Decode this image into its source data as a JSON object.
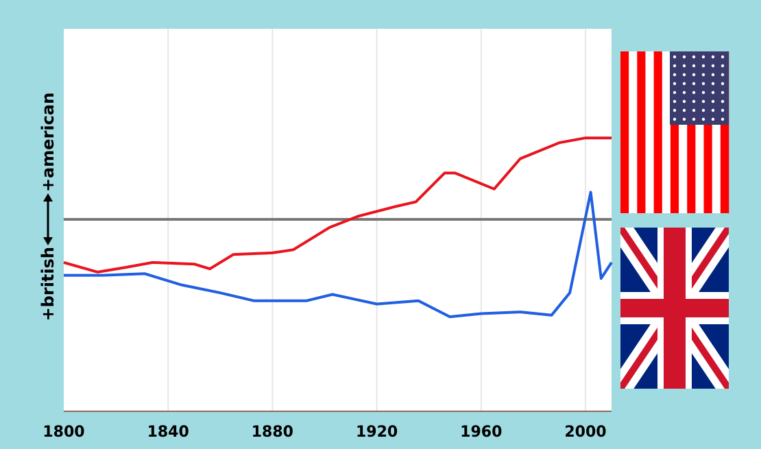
{
  "colors": {
    "background": "#a0dbe1",
    "plot_bg": "#ffffff",
    "american_line": "#e8141e",
    "british_line": "#1f5fe0",
    "zero_line": "#777777",
    "grid": "#e6e6e6"
  },
  "chart_data": {
    "type": "line",
    "title": "",
    "xlabel": "",
    "ylabel": {
      "positive": "+american",
      "negative": "+british"
    },
    "xlim": [
      1800,
      2010
    ],
    "ylim": [
      -100,
      100
    ],
    "x_ticks": [
      "1800",
      "1840",
      "1880",
      "1920",
      "1960",
      "2000"
    ],
    "x_tick_values": [
      1800,
      1840,
      1880,
      1920,
      1960,
      2000
    ],
    "grid": "vertical",
    "legend": "flag images at right: USA flag (top) marks American side, Union Jack (bottom) marks British side",
    "series": [
      {
        "color": "#e8141e",
        "x": [
          1800,
          1813,
          1824,
          1834,
          1850,
          1856,
          1865,
          1880,
          1888,
          1902,
          1913,
          1927,
          1935,
          1946,
          1950,
          1965,
          1975,
          1990,
          2000,
          2010
        ],
        "y": [
          -27,
          -33,
          -30,
          -27,
          -28,
          -31,
          -22,
          -21,
          -19,
          -5,
          2,
          8,
          11,
          29,
          29,
          19,
          38,
          48,
          51,
          51
        ]
      },
      {
        "color": "#1f5fe0",
        "x": [
          1800,
          1815,
          1831,
          1845,
          1860,
          1873,
          1885,
          1893,
          1903,
          1920,
          1936,
          1948,
          1960,
          1975,
          1987,
          1994,
          2002,
          2006,
          2010
        ],
        "y": [
          -35,
          -35,
          -34,
          -41,
          -46,
          -51,
          -51,
          -51,
          -47,
          -53,
          -51,
          -61,
          -59,
          -58,
          -60,
          -46,
          17,
          -37,
          -27
        ]
      }
    ]
  },
  "flags": {
    "top_icon": "usa-flag",
    "bottom_icon": "union-jack-flag"
  }
}
